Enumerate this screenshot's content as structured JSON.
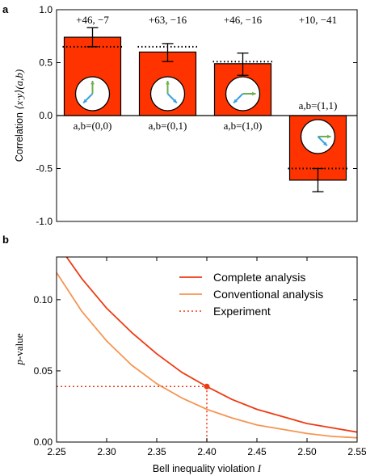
{
  "chart_data": [
    {
      "panel_label": "a",
      "type": "bar",
      "ylim": [
        -1.0,
        1.0
      ],
      "ylabel_prefix": "Correlation ",
      "ylabel_math": "⟨x·y⟩(a,b)",
      "yticks": [
        "1.0",
        "0.5",
        "0.0",
        "-0.5",
        "-1.0"
      ],
      "ytick_values": [
        1.0,
        0.5,
        0.0,
        -0.5,
        -1.0
      ],
      "color": "#ff3300",
      "bars": [
        {
          "settings": "a,b=(0,0)",
          "value": 0.74,
          "err_low": 0.65,
          "err_high": 0.83,
          "expected": 0.65,
          "counts": "+46, −7"
        },
        {
          "settings": "a,b=(0,1)",
          "value": 0.6,
          "err_low": 0.51,
          "err_high": 0.68,
          "expected": 0.65,
          "counts": "+63, −16"
        },
        {
          "settings": "a,b=(1,0)",
          "value": 0.49,
          "err_low": 0.38,
          "err_high": 0.59,
          "expected": 0.51,
          "counts": "+46, −16"
        },
        {
          "settings": "a,b=(1,1)",
          "value": -0.61,
          "err_low": -0.72,
          "err_high": -0.5,
          "expected": -0.5,
          "counts": "+10, −41"
        }
      ]
    },
    {
      "panel_label": "b",
      "type": "line",
      "xlabel": "Bell inequality violation I",
      "xlabel_text": "Bell inequality violation ",
      "xlabel_var": "I",
      "ylabel": "p-value",
      "xlim": [
        2.25,
        2.55
      ],
      "ylim": [
        0.0,
        0.13
      ],
      "xticks": [
        "2.25",
        "2.30",
        "2.35",
        "2.40",
        "2.45",
        "2.50",
        "2.55"
      ],
      "xtick_values": [
        2.25,
        2.3,
        2.35,
        2.4,
        2.45,
        2.5,
        2.55
      ],
      "yticks": [
        "0.10",
        "0.05",
        "0.00"
      ],
      "ytick_values": [
        0.1,
        0.05,
        0.0
      ],
      "legend_position": "top-right",
      "series": [
        {
          "name": "Complete analysis",
          "color": "#ee3a12",
          "x": [
            2.25,
            2.275,
            2.3,
            2.325,
            2.35,
            2.375,
            2.4,
            2.425,
            2.45,
            2.475,
            2.5,
            2.525,
            2.55
          ],
          "y": [
            0.14,
            0.115,
            0.094,
            0.077,
            0.062,
            0.049,
            0.039,
            0.03,
            0.023,
            0.018,
            0.013,
            0.01,
            0.007
          ]
        },
        {
          "name": "Conventional analysis",
          "color": "#f59553",
          "x": [
            2.25,
            2.275,
            2.3,
            2.325,
            2.35,
            2.375,
            2.4,
            2.425,
            2.45,
            2.475,
            2.5,
            2.525,
            2.55
          ],
          "y": [
            0.119,
            0.092,
            0.071,
            0.054,
            0.041,
            0.031,
            0.023,
            0.017,
            0.012,
            0.009,
            0.006,
            0.004,
            0.003
          ]
        },
        {
          "name": "Experiment",
          "color": "#ee3a12",
          "style": "dotted",
          "point": {
            "x": 2.4,
            "y": 0.039
          }
        }
      ]
    }
  ]
}
